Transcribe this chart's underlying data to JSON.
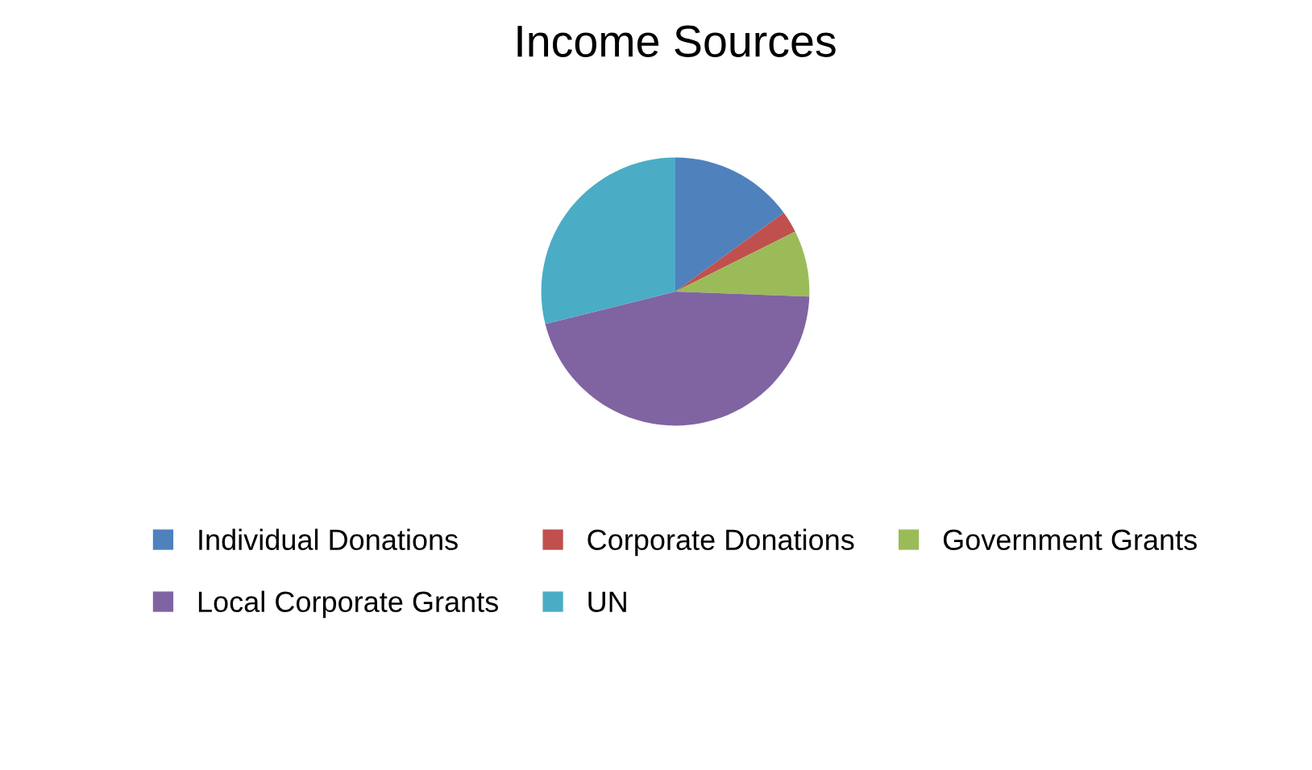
{
  "chart_data": {
    "type": "pie",
    "title": "Income Sources",
    "categories": [
      "Individual Donations",
      "Corporate Donations",
      "Government Grants",
      "Local Corporate Grants",
      "UN"
    ],
    "values": [
      15,
      2.6,
      8,
      45.5,
      28.9
    ],
    "colors": [
      "#4f81bd",
      "#c0504d",
      "#9bbb59",
      "#8064a2",
      "#4bacc6"
    ],
    "legend": "bottom"
  }
}
